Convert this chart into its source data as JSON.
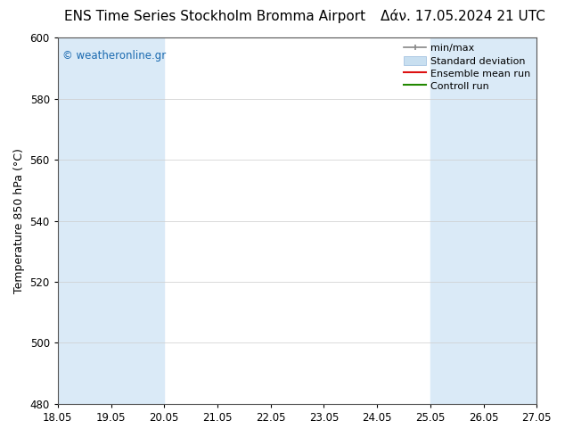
{
  "title_left": "ENS Time Series Stockholm Bromma Airport",
  "title_right": "Δάν. 17.05.2024 21 UTC",
  "ylabel": "Temperature 850 hPa (°C)",
  "xlim_start": 18.05,
  "xlim_end": 27.05,
  "ylim": [
    480,
    600
  ],
  "yticks": [
    480,
    500,
    520,
    540,
    560,
    580,
    600
  ],
  "xtick_labels": [
    "18.05",
    "19.05",
    "20.05",
    "21.05",
    "22.05",
    "23.05",
    "24.05",
    "25.05",
    "26.05",
    "27.05"
  ],
  "xtick_positions": [
    18.05,
    19.05,
    20.05,
    21.05,
    22.05,
    23.05,
    24.05,
    25.05,
    26.05,
    27.05
  ],
  "shaded_bands": [
    {
      "x_start": 18.05,
      "x_end": 20.05
    },
    {
      "x_start": 25.05,
      "x_end": 27.05
    }
  ],
  "shade_color": "#daeaf7",
  "watermark_text": "© weatheronline.gr",
  "watermark_color": "#1a6ab0",
  "background_color": "#ffffff",
  "plot_bg_color": "#ffffff",
  "title_fontsize": 11,
  "axis_fontsize": 9,
  "tick_fontsize": 8.5,
  "legend_fontsize": 8
}
